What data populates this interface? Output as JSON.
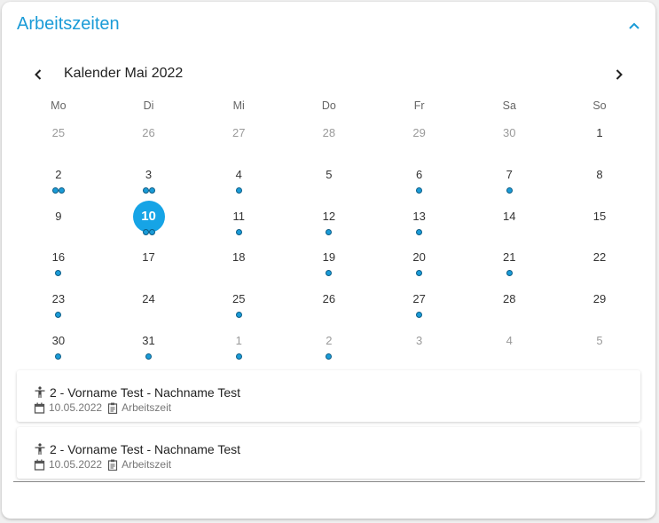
{
  "header": {
    "title": "Arbeitszeiten"
  },
  "calendar": {
    "month_label": "Kalender Mai 2022",
    "weekdays": [
      "Mo",
      "Di",
      "Mi",
      "Do",
      "Fr",
      "Sa",
      "So"
    ],
    "accent_color": "#1a9bd7",
    "weeks": [
      [
        {
          "d": "25",
          "other": true,
          "dots": 0
        },
        {
          "d": "26",
          "other": true,
          "dots": 0
        },
        {
          "d": "27",
          "other": true,
          "dots": 0
        },
        {
          "d": "28",
          "other": true,
          "dots": 0
        },
        {
          "d": "29",
          "other": true,
          "dots": 0
        },
        {
          "d": "30",
          "other": true,
          "dots": 0
        },
        {
          "d": "1",
          "other": false,
          "dots": 0
        }
      ],
      [
        {
          "d": "2",
          "other": false,
          "dots": 2
        },
        {
          "d": "3",
          "other": false,
          "dots": 2
        },
        {
          "d": "4",
          "other": false,
          "dots": 1
        },
        {
          "d": "5",
          "other": false,
          "dots": 0
        },
        {
          "d": "6",
          "other": false,
          "dots": 1
        },
        {
          "d": "7",
          "other": false,
          "dots": 1
        },
        {
          "d": "8",
          "other": false,
          "dots": 0
        }
      ],
      [
        {
          "d": "9",
          "other": false,
          "dots": 0
        },
        {
          "d": "10",
          "other": false,
          "dots": 2,
          "selected": true
        },
        {
          "d": "11",
          "other": false,
          "dots": 1
        },
        {
          "d": "12",
          "other": false,
          "dots": 1
        },
        {
          "d": "13",
          "other": false,
          "dots": 1
        },
        {
          "d": "14",
          "other": false,
          "dots": 0
        },
        {
          "d": "15",
          "other": false,
          "dots": 0
        }
      ],
      [
        {
          "d": "16",
          "other": false,
          "dots": 1
        },
        {
          "d": "17",
          "other": false,
          "dots": 0
        },
        {
          "d": "18",
          "other": false,
          "dots": 0
        },
        {
          "d": "19",
          "other": false,
          "dots": 1
        },
        {
          "d": "20",
          "other": false,
          "dots": 1
        },
        {
          "d": "21",
          "other": false,
          "dots": 1
        },
        {
          "d": "22",
          "other": false,
          "dots": 0
        }
      ],
      [
        {
          "d": "23",
          "other": false,
          "dots": 1
        },
        {
          "d": "24",
          "other": false,
          "dots": 0
        },
        {
          "d": "25",
          "other": false,
          "dots": 1
        },
        {
          "d": "26",
          "other": false,
          "dots": 0
        },
        {
          "d": "27",
          "other": false,
          "dots": 1
        },
        {
          "d": "28",
          "other": false,
          "dots": 0
        },
        {
          "d": "29",
          "other": false,
          "dots": 0
        }
      ],
      [
        {
          "d": "30",
          "other": false,
          "dots": 1
        },
        {
          "d": "31",
          "other": false,
          "dots": 1
        },
        {
          "d": "1",
          "other": true,
          "dots": 1
        },
        {
          "d": "2",
          "other": true,
          "dots": 1
        },
        {
          "d": "3",
          "other": true,
          "dots": 0
        },
        {
          "d": "4",
          "other": true,
          "dots": 0
        },
        {
          "d": "5",
          "other": true,
          "dots": 0
        }
      ]
    ]
  },
  "events": [
    {
      "title": "2 - Vorname Test - Nachname Test",
      "date": "10.05.2022",
      "type": "Arbeitszeit"
    },
    {
      "title": "2 - Vorname Test - Nachname Test",
      "date": "10.05.2022",
      "type": "Arbeitszeit"
    }
  ],
  "icons": {
    "collapse": "chevron-up-icon",
    "prev": "chevron-left-icon",
    "next": "chevron-right-icon",
    "person": "person-icon",
    "date": "calendar-icon",
    "type": "clipboard-icon"
  }
}
